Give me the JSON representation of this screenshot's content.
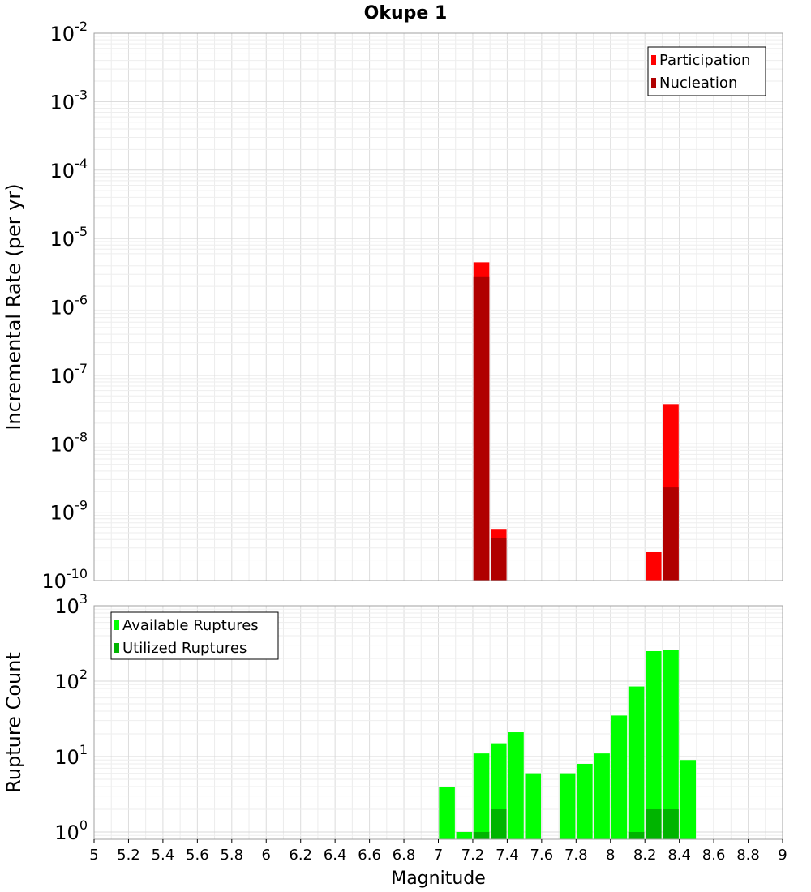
{
  "title": "Okupe 1",
  "chart_data": [
    {
      "type": "bar",
      "ylabel": "Incremental Rate (per yr)",
      "y_scale": "log",
      "ylim": [
        1e-10,
        0.01
      ],
      "yticks": [
        {
          "base": "10",
          "exp": "-2"
        },
        {
          "base": "10",
          "exp": "-3"
        },
        {
          "base": "10",
          "exp": "-4"
        },
        {
          "base": "10",
          "exp": "-5"
        },
        {
          "base": "10",
          "exp": "-6"
        },
        {
          "base": "10",
          "exp": "-7"
        },
        {
          "base": "10",
          "exp": "-8"
        },
        {
          "base": "10",
          "exp": "-9"
        },
        {
          "base": "10",
          "exp": "-10"
        }
      ],
      "xlim": [
        5,
        9
      ],
      "bin_width": 0.1,
      "legend_position": "top-right",
      "series": [
        {
          "name": "Participation",
          "color": "#ff0000",
          "x": [
            7.25,
            7.35,
            8.25,
            8.35
          ],
          "values": [
            4.5e-06,
            5.7e-10,
            2.6e-10,
            3.8e-08
          ]
        },
        {
          "name": "Nucleation",
          "color": "#b00000",
          "x": [
            7.25,
            7.35,
            8.35
          ],
          "values": [
            2.8e-06,
            4.2e-10,
            2.3e-09
          ]
        }
      ]
    },
    {
      "type": "bar",
      "ylabel": "Rupture Count",
      "xlabel": "Magnitude",
      "y_scale": "log",
      "ylim": [
        0.8,
        1000
      ],
      "yticks": [
        {
          "base": "10",
          "exp": "3"
        },
        {
          "base": "10",
          "exp": "2"
        },
        {
          "base": "10",
          "exp": "1"
        },
        {
          "base": "10",
          "exp": "0"
        }
      ],
      "xlim": [
        5,
        9
      ],
      "xticks": [
        "5",
        "5.2",
        "5.4",
        "5.6",
        "5.8",
        "6",
        "6.2",
        "6.4",
        "6.6",
        "6.8",
        "7",
        "7.2",
        "7.4",
        "7.6",
        "7.8",
        "8",
        "8.2",
        "8.4",
        "8.6",
        "8.8",
        "9"
      ],
      "bin_width": 0.1,
      "legend_position": "top-left",
      "series": [
        {
          "name": "Available Ruptures",
          "color": "#00ff00",
          "x": [
            7.05,
            7.15,
            7.25,
            7.35,
            7.45,
            7.55,
            7.75,
            7.85,
            7.95,
            8.05,
            8.15,
            8.25,
            8.35,
            8.45
          ],
          "values": [
            4,
            1,
            11,
            15,
            21,
            6,
            6,
            8,
            11,
            35,
            85,
            250,
            260,
            9
          ]
        },
        {
          "name": "Utilized Ruptures",
          "color": "#00b400",
          "x": [
            7.25,
            7.35,
            8.15,
            8.25,
            8.35
          ],
          "values": [
            1,
            2,
            1,
            2,
            2
          ]
        }
      ]
    }
  ]
}
